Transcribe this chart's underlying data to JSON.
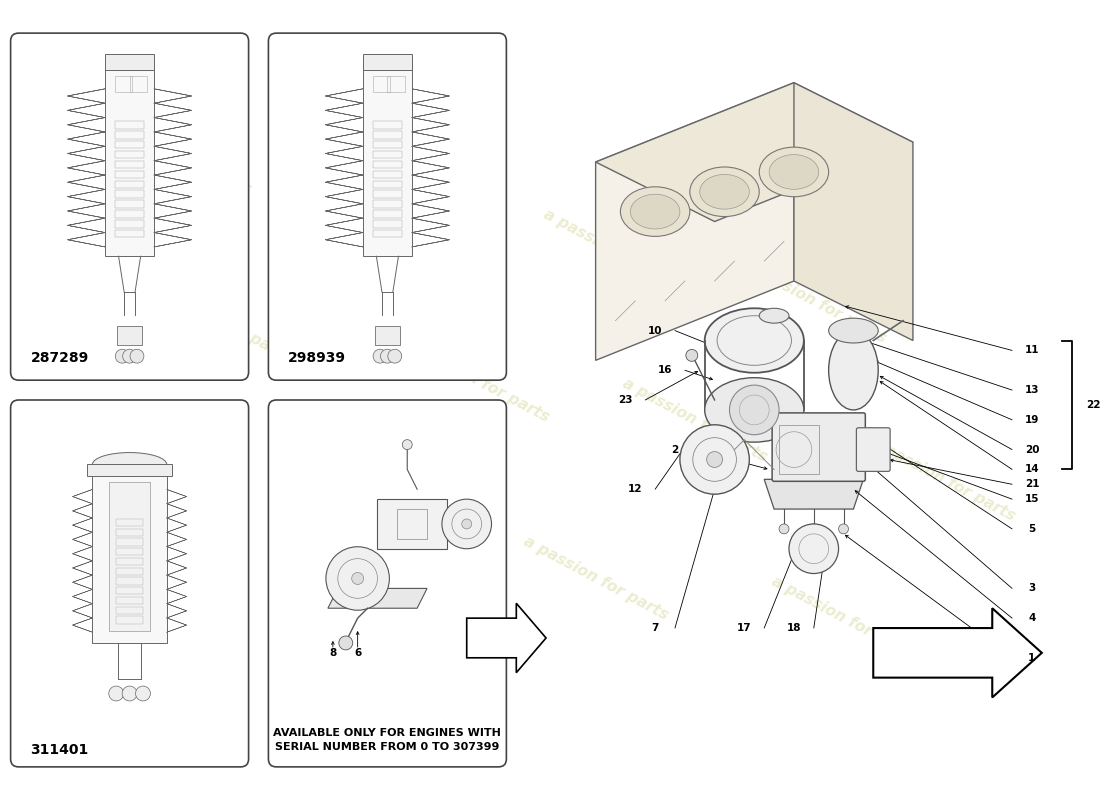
{
  "background_color": "#ffffff",
  "page_width": 11.0,
  "page_height": 8.0,
  "part_numbers": [
    "287289",
    "298939",
    "311401"
  ],
  "notice_line1": "AVAILABLE ONLY FOR ENGINES WITH",
  "notice_line2": "SERIAL NUMBER FROM 0 TO 307399",
  "box_color": "#444444",
  "line_color": "#555555",
  "light_line": "#999999",
  "watermark_color": "#e0e0b0",
  "callout_fontsize": 7.5,
  "part_number_fontsize": 10
}
